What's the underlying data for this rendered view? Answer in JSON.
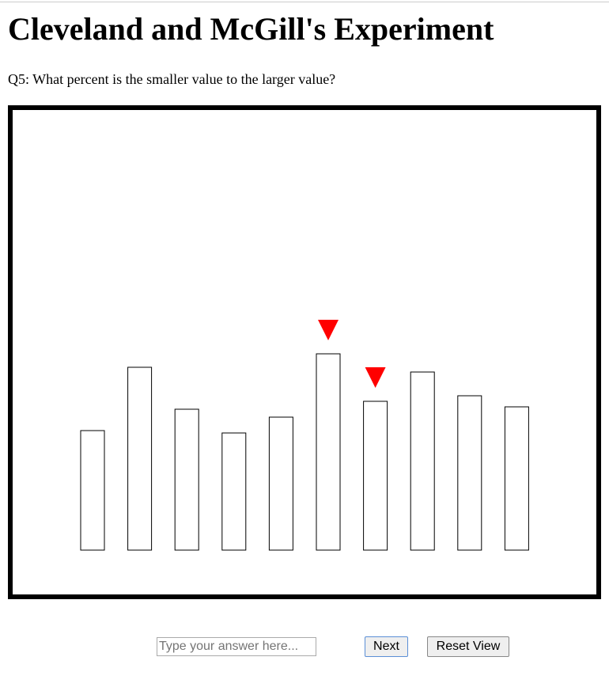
{
  "header": {
    "title": "Cleveland and McGill's Experiment",
    "question": "Q5: What percent is the smaller value to the larger value?"
  },
  "chart_data": {
    "type": "bar",
    "categories": [
      null,
      null,
      null,
      null,
      null,
      null,
      null,
      null,
      null,
      null
    ],
    "values": [
      151,
      231,
      178,
      148,
      168,
      248,
      188,
      225,
      195,
      181
    ],
    "marked": [
      5,
      6
    ],
    "color": "#ffffff",
    "marker_color": "#ff0000",
    "ylim": [
      0,
      556
    ]
  },
  "controls": {
    "answer_placeholder": "Type your answer here...",
    "next": "Next",
    "reset": "Reset View"
  }
}
